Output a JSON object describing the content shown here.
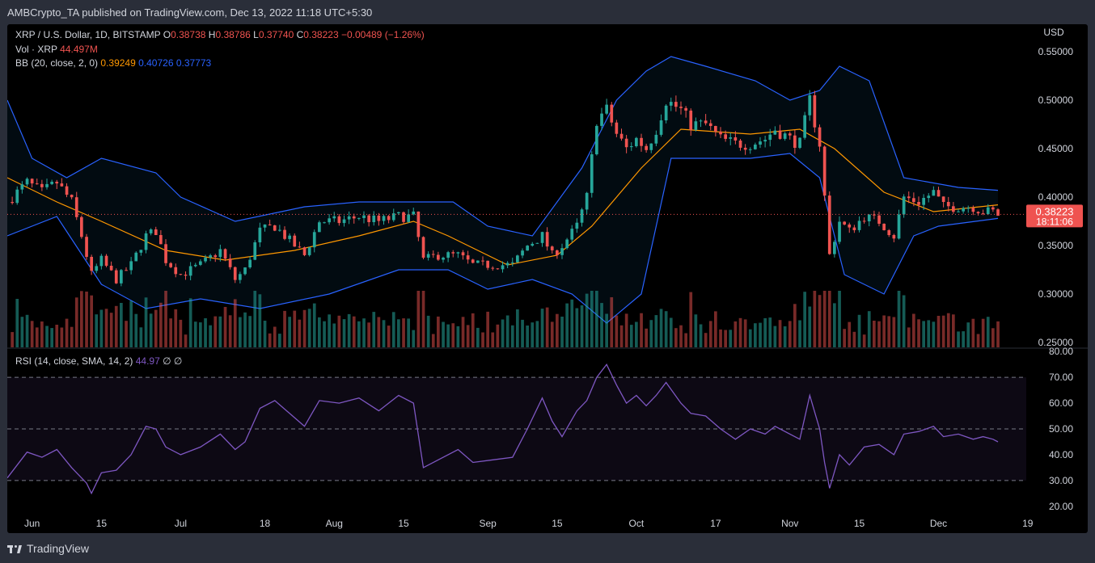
{
  "header": {
    "publisher": "AMBCrypto_TA published on TradingView.com, Dec 13, 2022 11:18 UTC+5:30"
  },
  "footer": {
    "brand": "TradingView"
  },
  "colors": {
    "up": "#26a69a",
    "down": "#ef5350",
    "bb_basis": "#ff9800",
    "bb_band": "#2962ff",
    "rsi": "#7e57c2"
  },
  "legend": {
    "symbol": "XRP / U.S. Dollar, 1D, BITSTAMP",
    "o_label": "O",
    "o": "0.38738",
    "h_label": "H",
    "h": "0.38786",
    "l_label": "L",
    "l": "0.37740",
    "c_label": "C",
    "c": "0.38223",
    "chg": "−0.00489 (−1.26%)",
    "vol_label": "Vol · XRP",
    "vol": "44.497M",
    "bb_label": "BB (20, close, 2, 0)",
    "bb_basis": "0.39249",
    "bb_upper": "0.40726",
    "bb_lower": "0.37773",
    "rsi_label": "RSI (14, close, SMA, 14, 2)",
    "rsi": "44.97",
    "rsi_na1": "∅",
    "rsi_na2": "∅"
  },
  "price_badge": {
    "price": "0.38223",
    "countdown": "18:11:06"
  },
  "chart_data": [
    {
      "type": "candlestick",
      "title": "XRP / U.S. Dollar, 1D, BITSTAMP",
      "ylabel": "USD",
      "yticks": [
        "0.55000",
        "0.50000",
        "0.45000",
        "0.40000",
        "0.35000",
        "0.30000",
        "0.25000"
      ],
      "ylim": [
        0.245,
        0.57
      ],
      "xticks": [
        {
          "date": "2022-06-01",
          "label": "Jun"
        },
        {
          "date": "2022-06-15",
          "label": "15"
        },
        {
          "date": "2022-07-01",
          "label": "Jul"
        },
        {
          "date": "2022-07-18",
          "label": "18"
        },
        {
          "date": "2022-08-01",
          "label": "Aug"
        },
        {
          "date": "2022-08-15",
          "label": "15"
        },
        {
          "date": "2022-09-01",
          "label": "Sep"
        },
        {
          "date": "2022-09-15",
          "label": "15"
        },
        {
          "date": "2022-10-01",
          "label": "Oct"
        },
        {
          "date": "2022-10-17",
          "label": "17"
        },
        {
          "date": "2022-11-01",
          "label": "Nov"
        },
        {
          "date": "2022-11-15",
          "label": "15"
        },
        {
          "date": "2022-12-01",
          "label": "Dec"
        },
        {
          "date": "2022-12-19",
          "label": "19"
        }
      ],
      "series": [
        {
          "name": "XRP / U.S. Dollar",
          "close_points": [
            [
              "2022-05-27",
              0.395
            ],
            [
              "2022-05-31",
              0.415
            ],
            [
              "2022-06-03",
              0.405
            ],
            [
              "2022-06-06",
              0.415
            ],
            [
              "2022-06-09",
              0.395
            ],
            [
              "2022-06-11",
              0.36
            ],
            [
              "2022-06-13",
              0.32
            ],
            [
              "2022-06-15",
              0.335
            ],
            [
              "2022-06-18",
              0.315
            ],
            [
              "2022-06-21",
              0.33
            ],
            [
              "2022-06-24",
              0.36
            ],
            [
              "2022-06-26",
              0.365
            ],
            [
              "2022-06-28",
              0.335
            ],
            [
              "2022-07-01",
              0.32
            ],
            [
              "2022-07-05",
              0.33
            ],
            [
              "2022-07-09",
              0.345
            ],
            [
              "2022-07-12",
              0.315
            ],
            [
              "2022-07-14",
              0.325
            ],
            [
              "2022-07-17",
              0.365
            ],
            [
              "2022-07-20",
              0.37
            ],
            [
              "2022-07-23",
              0.355
            ],
            [
              "2022-07-26",
              0.34
            ],
            [
              "2022-07-29",
              0.375
            ],
            [
              "2022-08-02",
              0.375
            ],
            [
              "2022-08-06",
              0.38
            ],
            [
              "2022-08-10",
              0.375
            ],
            [
              "2022-08-14",
              0.38
            ],
            [
              "2022-08-17",
              0.38
            ],
            [
              "2022-08-19",
              0.335
            ],
            [
              "2022-08-22",
              0.34
            ],
            [
              "2022-08-26",
              0.34
            ],
            [
              "2022-08-29",
              0.33
            ],
            [
              "2022-09-02",
              0.33
            ],
            [
              "2022-09-06",
              0.33
            ],
            [
              "2022-09-09",
              0.35
            ],
            [
              "2022-09-12",
              0.36
            ],
            [
              "2022-09-14",
              0.34
            ],
            [
              "2022-09-16",
              0.35
            ],
            [
              "2022-09-19",
              0.37
            ],
            [
              "2022-09-21",
              0.4
            ],
            [
              "2022-09-23",
              0.48
            ],
            [
              "2022-09-25",
              0.49
            ],
            [
              "2022-09-27",
              0.465
            ],
            [
              "2022-09-29",
              0.45
            ],
            [
              "2022-10-01",
              0.46
            ],
            [
              "2022-10-03",
              0.45
            ],
            [
              "2022-10-05",
              0.47
            ],
            [
              "2022-10-07",
              0.5
            ],
            [
              "2022-10-10",
              0.49
            ],
            [
              "2022-10-12",
              0.475
            ],
            [
              "2022-10-15",
              0.475
            ],
            [
              "2022-10-18",
              0.46
            ],
            [
              "2022-10-21",
              0.455
            ],
            [
              "2022-10-24",
              0.455
            ],
            [
              "2022-10-27",
              0.46
            ],
            [
              "2022-10-29",
              0.47
            ],
            [
              "2022-11-01",
              0.46
            ],
            [
              "2022-11-03",
              0.455
            ],
            [
              "2022-11-05",
              0.5
            ],
            [
              "2022-11-07",
              0.455
            ],
            [
              "2022-11-08",
              0.4
            ],
            [
              "2022-11-09",
              0.34
            ],
            [
              "2022-11-11",
              0.375
            ],
            [
              "2022-11-13",
              0.365
            ],
            [
              "2022-11-16",
              0.38
            ],
            [
              "2022-11-19",
              0.375
            ],
            [
              "2022-11-22",
              0.36
            ],
            [
              "2022-11-24",
              0.4
            ],
            [
              "2022-11-27",
              0.395
            ],
            [
              "2022-11-30",
              0.405
            ],
            [
              "2022-12-02",
              0.39
            ],
            [
              "2022-12-05",
              0.39
            ],
            [
              "2022-12-08",
              0.39
            ],
            [
              "2022-12-10",
              0.385
            ],
            [
              "2022-12-12",
              0.385
            ],
            [
              "2022-12-13",
              0.382
            ]
          ]
        }
      ],
      "bollinger": {
        "upper": [
          [
            "2022-05-27",
            0.5
          ],
          [
            "2022-06-01",
            0.44
          ],
          [
            "2022-06-08",
            0.42
          ],
          [
            "2022-06-15",
            0.44
          ],
          [
            "2022-06-26",
            0.425
          ],
          [
            "2022-07-01",
            0.4
          ],
          [
            "2022-07-12",
            0.375
          ],
          [
            "2022-07-26",
            0.39
          ],
          [
            "2022-08-06",
            0.395
          ],
          [
            "2022-08-17",
            0.395
          ],
          [
            "2022-08-25",
            0.395
          ],
          [
            "2022-09-01",
            0.37
          ],
          [
            "2022-09-10",
            0.36
          ],
          [
            "2022-09-20",
            0.43
          ],
          [
            "2022-09-27",
            0.5
          ],
          [
            "2022-10-03",
            0.53
          ],
          [
            "2022-10-08",
            0.545
          ],
          [
            "2022-10-15",
            0.535
          ],
          [
            "2022-10-25",
            0.52
          ],
          [
            "2022-11-01",
            0.5
          ],
          [
            "2022-11-07",
            0.51
          ],
          [
            "2022-11-11",
            0.535
          ],
          [
            "2022-11-17",
            0.52
          ],
          [
            "2022-11-24",
            0.42
          ],
          [
            "2022-12-05",
            0.41
          ],
          [
            "2022-12-13",
            0.407
          ]
        ],
        "basis": [
          [
            "2022-05-27",
            0.42
          ],
          [
            "2022-06-06",
            0.395
          ],
          [
            "2022-06-15",
            0.375
          ],
          [
            "2022-06-28",
            0.345
          ],
          [
            "2022-07-10",
            0.335
          ],
          [
            "2022-07-24",
            0.345
          ],
          [
            "2022-08-06",
            0.36
          ],
          [
            "2022-08-17",
            0.375
          ],
          [
            "2022-08-24",
            0.36
          ],
          [
            "2022-09-05",
            0.33
          ],
          [
            "2022-09-15",
            0.34
          ],
          [
            "2022-09-22",
            0.37
          ],
          [
            "2022-10-02",
            0.43
          ],
          [
            "2022-10-10",
            0.47
          ],
          [
            "2022-10-24",
            0.465
          ],
          [
            "2022-11-03",
            0.47
          ],
          [
            "2022-11-10",
            0.45
          ],
          [
            "2022-11-20",
            0.405
          ],
          [
            "2022-11-30",
            0.385
          ],
          [
            "2022-12-13",
            0.392
          ]
        ],
        "lower": [
          [
            "2022-05-27",
            0.36
          ],
          [
            "2022-06-06",
            0.38
          ],
          [
            "2022-06-15",
            0.31
          ],
          [
            "2022-06-24",
            0.285
          ],
          [
            "2022-07-05",
            0.295
          ],
          [
            "2022-07-17",
            0.285
          ],
          [
            "2022-07-31",
            0.3
          ],
          [
            "2022-08-14",
            0.325
          ],
          [
            "2022-08-24",
            0.325
          ],
          [
            "2022-09-01",
            0.305
          ],
          [
            "2022-09-10",
            0.315
          ],
          [
            "2022-09-18",
            0.3
          ],
          [
            "2022-09-25",
            0.27
          ],
          [
            "2022-10-02",
            0.3
          ],
          [
            "2022-10-08",
            0.44
          ],
          [
            "2022-10-15",
            0.44
          ],
          [
            "2022-10-24",
            0.44
          ],
          [
            "2022-11-01",
            0.445
          ],
          [
            "2022-11-07",
            0.42
          ],
          [
            "2022-11-12",
            0.32
          ],
          [
            "2022-11-20",
            0.3
          ],
          [
            "2022-11-26",
            0.36
          ],
          [
            "2022-12-01",
            0.37
          ],
          [
            "2022-12-13",
            0.378
          ]
        ]
      },
      "volume": {
        "name": "Vol · XRP",
        "last": "44.497M"
      }
    },
    {
      "type": "line",
      "title": "RSI (14, close, SMA, 14, 2)",
      "yticks": [
        "80.00",
        "70.00",
        "60.00",
        "50.00",
        "40.00",
        "30.00",
        "20.00"
      ],
      "ylim": [
        19,
        81
      ],
      "band": [
        30,
        70
      ],
      "midline": 50,
      "series": [
        {
          "name": "RSI",
          "values": [
            [
              "2022-05-27",
              31
            ],
            [
              "2022-05-31",
              41
            ],
            [
              "2022-06-03",
              39
            ],
            [
              "2022-06-06",
              42
            ],
            [
              "2022-06-09",
              35
            ],
            [
              "2022-06-12",
              29
            ],
            [
              "2022-06-13",
              25
            ],
            [
              "2022-06-15",
              33
            ],
            [
              "2022-06-18",
              34
            ],
            [
              "2022-06-21",
              40
            ],
            [
              "2022-06-24",
              51
            ],
            [
              "2022-06-26",
              50
            ],
            [
              "2022-06-28",
              43
            ],
            [
              "2022-07-01",
              40
            ],
            [
              "2022-07-05",
              43
            ],
            [
              "2022-07-09",
              48
            ],
            [
              "2022-07-12",
              42
            ],
            [
              "2022-07-14",
              45
            ],
            [
              "2022-07-17",
              58
            ],
            [
              "2022-07-20",
              61
            ],
            [
              "2022-07-23",
              56
            ],
            [
              "2022-07-26",
              51
            ],
            [
              "2022-07-29",
              61
            ],
            [
              "2022-08-02",
              60
            ],
            [
              "2022-08-06",
              62
            ],
            [
              "2022-08-10",
              57
            ],
            [
              "2022-08-14",
              63
            ],
            [
              "2022-08-17",
              60
            ],
            [
              "2022-08-19",
              35
            ],
            [
              "2022-08-22",
              38
            ],
            [
              "2022-08-26",
              42
            ],
            [
              "2022-08-29",
              37
            ],
            [
              "2022-09-02",
              38
            ],
            [
              "2022-09-06",
              39
            ],
            [
              "2022-09-09",
              50
            ],
            [
              "2022-09-12",
              62
            ],
            [
              "2022-09-14",
              53
            ],
            [
              "2022-09-16",
              47
            ],
            [
              "2022-09-19",
              57
            ],
            [
              "2022-09-21",
              61
            ],
            [
              "2022-09-23",
              70
            ],
            [
              "2022-09-25",
              75
            ],
            [
              "2022-09-27",
              67
            ],
            [
              "2022-09-29",
              60
            ],
            [
              "2022-10-01",
              63
            ],
            [
              "2022-10-03",
              59
            ],
            [
              "2022-10-05",
              63
            ],
            [
              "2022-10-07",
              68
            ],
            [
              "2022-10-10",
              60
            ],
            [
              "2022-10-12",
              56
            ],
            [
              "2022-10-15",
              55
            ],
            [
              "2022-10-18",
              50
            ],
            [
              "2022-10-21",
              46
            ],
            [
              "2022-10-24",
              50
            ],
            [
              "2022-10-27",
              48
            ],
            [
              "2022-10-29",
              51
            ],
            [
              "2022-11-01",
              48
            ],
            [
              "2022-11-03",
              46
            ],
            [
              "2022-11-05",
              63
            ],
            [
              "2022-11-07",
              50
            ],
            [
              "2022-11-08",
              37
            ],
            [
              "2022-11-09",
              27
            ],
            [
              "2022-11-11",
              40
            ],
            [
              "2022-11-13",
              36
            ],
            [
              "2022-11-16",
              43
            ],
            [
              "2022-11-19",
              44
            ],
            [
              "2022-11-22",
              40
            ],
            [
              "2022-11-24",
              48
            ],
            [
              "2022-11-27",
              49
            ],
            [
              "2022-11-30",
              51
            ],
            [
              "2022-12-02",
              47
            ],
            [
              "2022-12-05",
              48
            ],
            [
              "2022-12-08",
              46
            ],
            [
              "2022-12-10",
              47
            ],
            [
              "2022-12-12",
              46
            ],
            [
              "2022-12-13",
              45
            ]
          ]
        }
      ]
    }
  ]
}
